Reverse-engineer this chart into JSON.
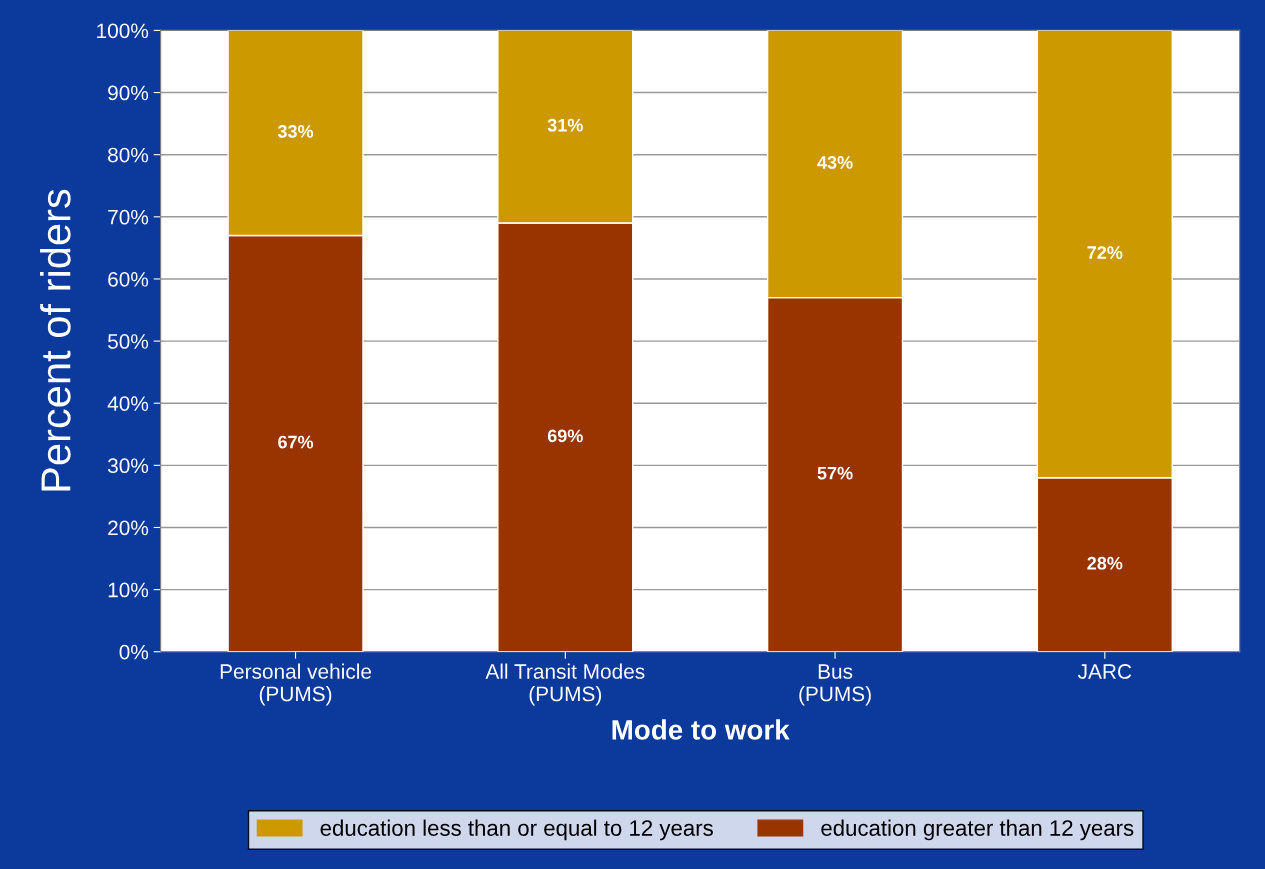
{
  "chart_data": {
    "type": "bar",
    "stacked": true,
    "xlabel": "Mode to work",
    "ylabel": "Percent of riders",
    "categories": [
      "Personal vehicle\n(PUMS)",
      "All Transit Modes\n(PUMS)",
      "Bus\n(PUMS)",
      "JARC"
    ],
    "series": [
      {
        "name": "education greater than 12 years",
        "color": "#993300",
        "values": [
          67,
          69,
          57,
          28
        ],
        "value_labels": [
          "67%",
          "69%",
          "57%",
          "28%"
        ]
      },
      {
        "name": "education less than or equal to 12 years",
        "color": "#cc9900",
        "values": [
          33,
          31,
          43,
          72
        ],
        "value_labels": [
          "33%",
          "31%",
          "43%",
          "72%"
        ]
      }
    ],
    "ylim": [
      0,
      100
    ],
    "yticks": [
      {
        "value": 0,
        "label": "0%"
      },
      {
        "value": 10,
        "label": "10%"
      },
      {
        "value": 20,
        "label": "20%"
      },
      {
        "value": 30,
        "label": "30%"
      },
      {
        "value": 40,
        "label": "40%"
      },
      {
        "value": 50,
        "label": "50%"
      },
      {
        "value": 60,
        "label": "60%"
      },
      {
        "value": 70,
        "label": "70%"
      },
      {
        "value": 80,
        "label": "80%"
      },
      {
        "value": 90,
        "label": "90%"
      },
      {
        "value": 100,
        "label": "100%"
      }
    ],
    "grid": "y",
    "legend": "bottom"
  }
}
